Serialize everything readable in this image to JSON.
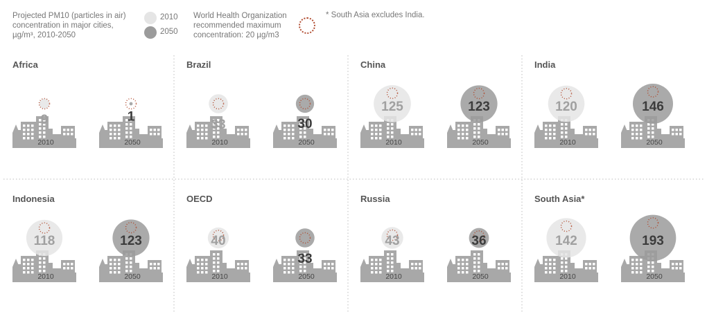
{
  "header": {
    "title": "Projected PM10 (particles in air)\nconcentration in major cities,\nµg/m³,  2010-2050",
    "legend_2010": "2010",
    "legend_2050": "2050",
    "who_note": "World Health Organization\nrecommended maximum\nconcentration: 20 µg/m3",
    "south_asia_note": "* South Asia excludes India."
  },
  "colors": {
    "c2010": "#e5e5e5",
    "c2050": "#9b9b9b",
    "city": "#a8a8a8",
    "window": "#ffffff",
    "who": "#b04a2e",
    "divider": "#bbbbbb"
  },
  "chart_data": {
    "type": "bubble",
    "unit": "µg/m³",
    "who_limit": 20,
    "years": [
      "2010",
      "2050"
    ],
    "regions": [
      {
        "name": "Africa",
        "values": [
          9,
          1
        ]
      },
      {
        "name": "Brazil",
        "values": [
          33,
          30
        ]
      },
      {
        "name": "China",
        "values": [
          125,
          123
        ]
      },
      {
        "name": "India",
        "values": [
          120,
          146
        ]
      },
      {
        "name": "Indonesia",
        "values": [
          118,
          123
        ]
      },
      {
        "name": "OECD",
        "values": [
          40,
          33
        ]
      },
      {
        "name": "Russia",
        "values": [
          43,
          36
        ]
      },
      {
        "name": "South Asia*",
        "values": [
          142,
          193
        ]
      }
    ]
  }
}
